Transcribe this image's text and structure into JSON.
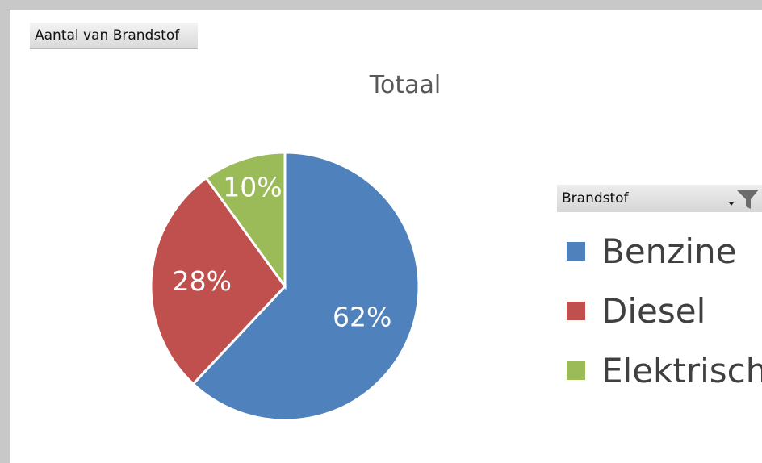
{
  "field_button": {
    "label": "Aantal van Brandstof"
  },
  "legend": {
    "header": "Brandstof",
    "filter_icon": "filter-dropdown-icon"
  },
  "chart_data": {
    "type": "pie",
    "title": "Totaal",
    "categories": [
      "Benzine",
      "Diesel",
      "Elektrisch"
    ],
    "values": [
      62,
      28,
      10
    ],
    "labels": [
      "62%",
      "28%",
      "10%"
    ],
    "colors": [
      "#4f81bd",
      "#c0504d",
      "#9bbb59"
    ],
    "legend_position": "right"
  }
}
